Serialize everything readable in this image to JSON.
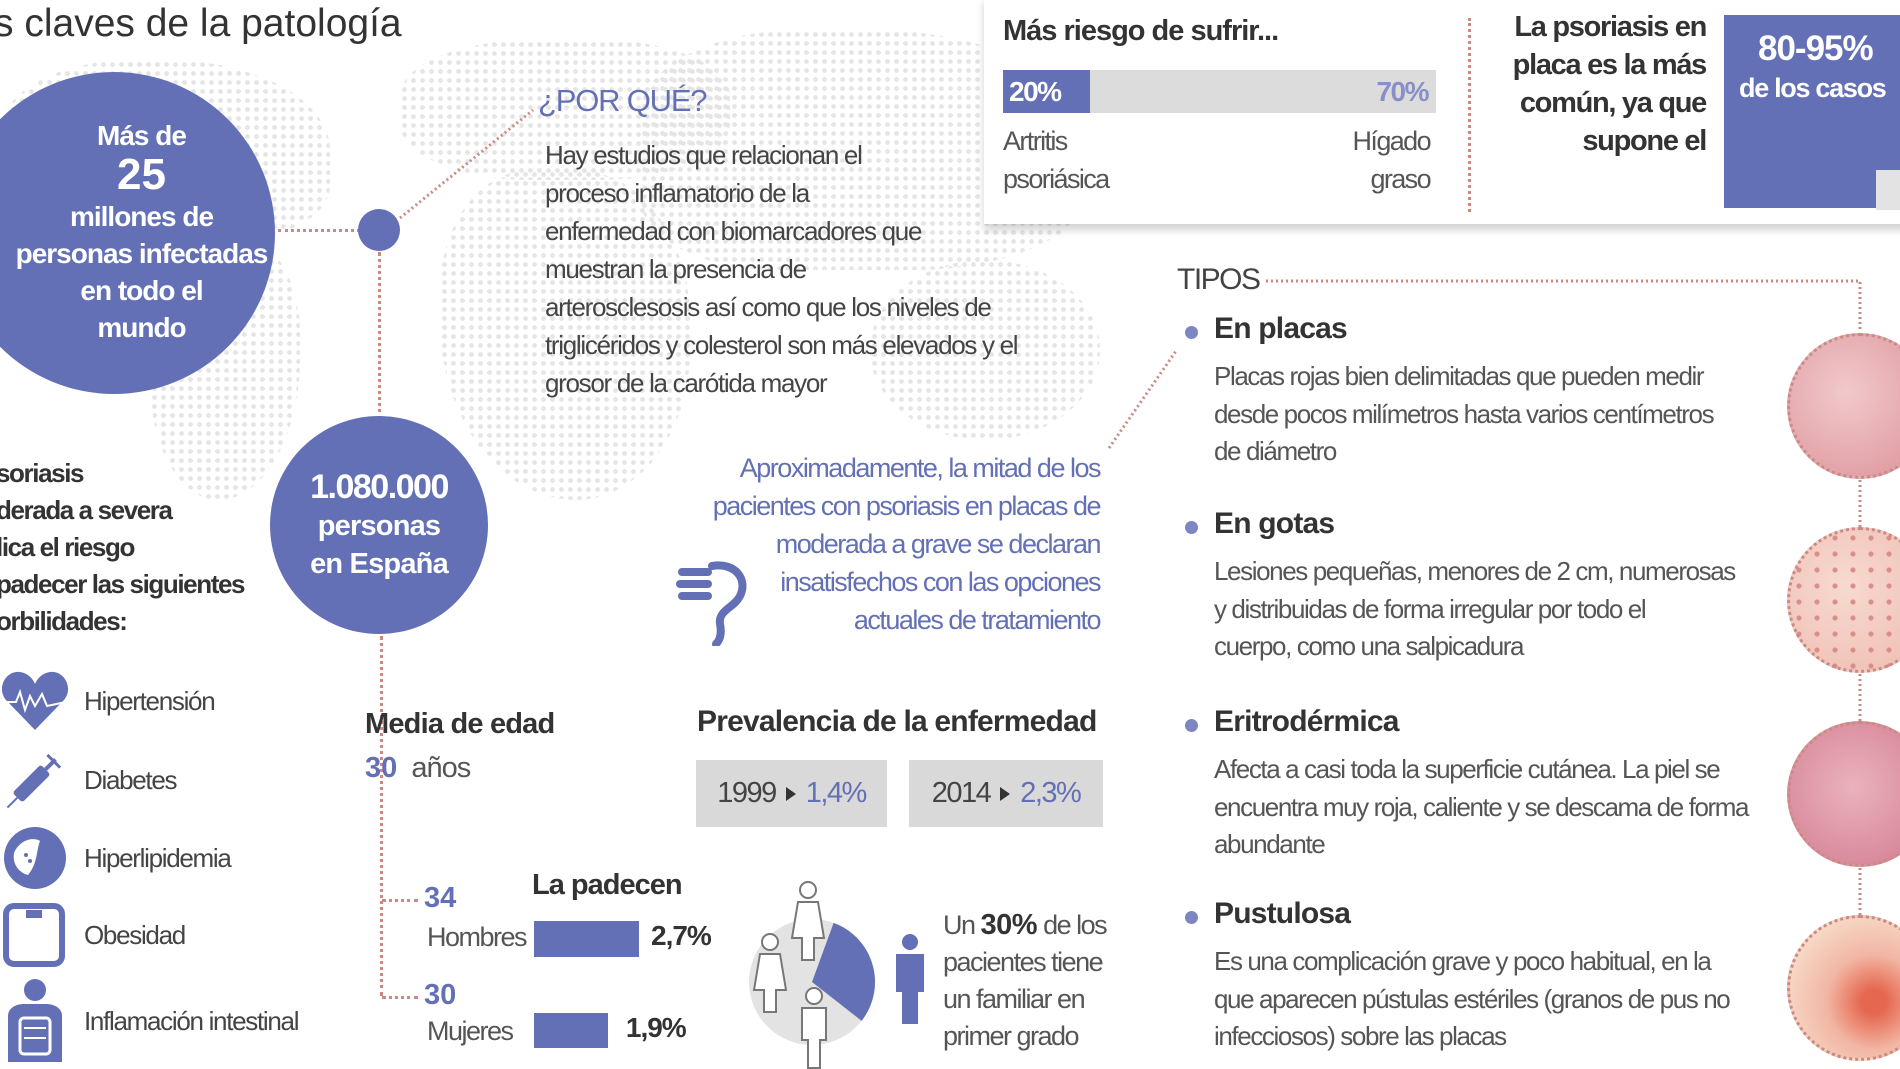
{
  "title": "s claves de la patología",
  "world": {
    "line1": "Más de",
    "number": "25",
    "rest": "millones de\npersonas infectadas\nen todo el\nmundo"
  },
  "why": {
    "heading": "¿POR QUÉ?",
    "text": "Hay estudios que relacionan el\nproceso inflamatorio de la\nenfermedad con biomarcadores que\nmuestran la presencia de\narterosclesosis así como que los niveles de\ntriglicéridos y colesterol son más elevados y el\ngrosor de la carótida mayor"
  },
  "spain": {
    "number": "1.080.000",
    "rest": "personas\nen España"
  },
  "comorbidities": {
    "intro": "soriasis\nderada a severa\nlica el riesgo\npadecer las siguientes\norbilidades:",
    "items": [
      {
        "label": "Hipertensión",
        "icon": "heart-pulse-icon"
      },
      {
        "label": "Diabetes",
        "icon": "syringe-icon"
      },
      {
        "label": "Hiperlipidemia",
        "icon": "liver-icon"
      },
      {
        "label": "Obesidad",
        "icon": "scale-icon"
      },
      {
        "label": "Inflamación intestinal",
        "icon": "intestine-icon"
      }
    ]
  },
  "age": {
    "title": "Media de edad",
    "value": "30",
    "unit": "años",
    "men_age": "34",
    "men_label": "Hombres",
    "women_age": "30",
    "women_label": "Mujeres",
    "suffer_title": "La padecen",
    "men_pct": "2,7%",
    "women_pct": "1,9%",
    "men_value": 2.7,
    "women_value": 1.9
  },
  "dissatisfied": {
    "text": "Aproximadamente, la mitad de los\npacientes con psoriasis en placas de\nmoderada a grave se declaran\ninsatisfechos con las opciones\nactuales de tratamiento",
    "icon": "thumbs-down-icon"
  },
  "prevalence": {
    "title": "Prevalencia de la enfermedad",
    "items": [
      {
        "year": "1999",
        "value": "1,4%"
      },
      {
        "year": "2014",
        "value": "2,3%"
      }
    ]
  },
  "family": {
    "prefix": "Un",
    "pct": "30%",
    "text1": "de los",
    "text2": "pacientes tiene\nun familiar en\nprimer grado",
    "share": 30
  },
  "risk": {
    "title": "Más riesgo de sufrir...",
    "left_pct": "20%",
    "right_pct": "70%",
    "left_value": 20,
    "left_label": "Artritis\npsoriásica",
    "right_label": "Hígado\ngraso"
  },
  "plaque": {
    "text": "La psoriasis en\nplaca es la más\ncomún, ya que\nsupone el",
    "pct": "80-95%",
    "cases": "de los casos"
  },
  "types": {
    "heading": "TIPOS",
    "items": [
      {
        "title": "En placas",
        "desc": "Placas rojas bien delimitadas que pueden medir\ndesde pocos milímetros hasta varios centímetros\nde diámetro"
      },
      {
        "title": "En gotas",
        "desc": "Lesiones pequeñas, menores de 2 cm, numerosas\ny distribuidas de forma irregular por todo el\ncuerpo, como una salpicadura"
      },
      {
        "title": "Eritrodérmica",
        "desc": "Afecta a casi toda la superficie cutánea. La piel se\nencuentra muy roja, caliente y se descama de forma\nabundante"
      },
      {
        "title": "Pustulosa",
        "desc": "Es una complicación grave y poco habitual, en la\nque aparecen pústulas estériles (granos de pus no\ninfecciosos) sobre las placas"
      }
    ]
  },
  "colors": {
    "accent": "#6470b5",
    "dotted_line": "#c98a84",
    "box_gray": "#d9d9d9"
  }
}
